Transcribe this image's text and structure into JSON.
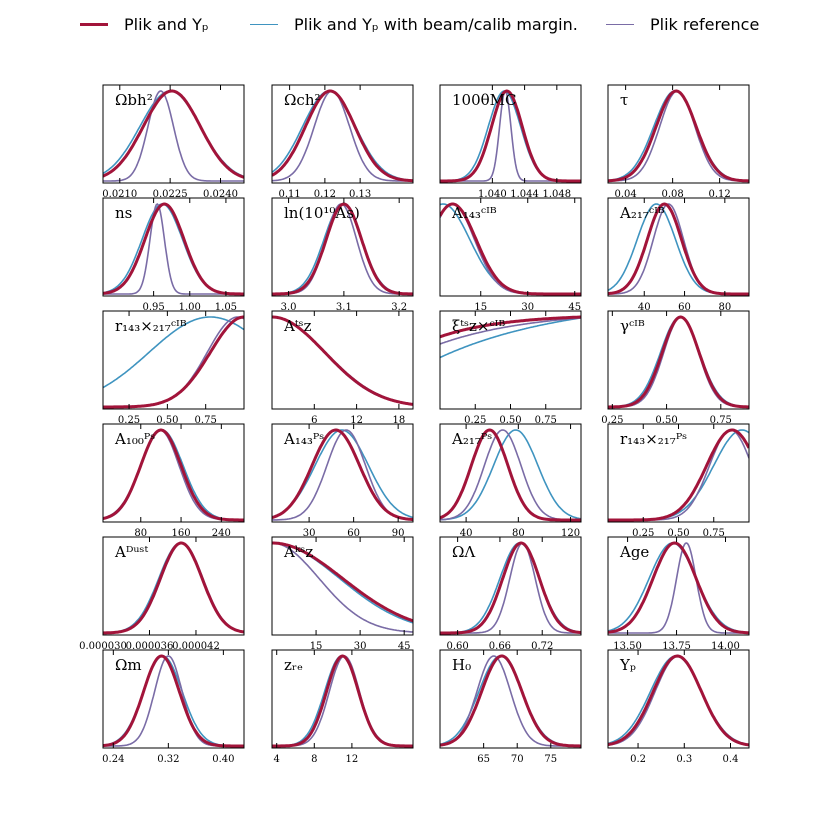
{
  "legend": [
    {
      "label": "Plik and Yₚ",
      "color": "#a2143a",
      "width": 3
    },
    {
      "label": "Plik and Yₚ with beam/calib margin.",
      "color": "#3f94c0",
      "width": 1.6
    },
    {
      "label": "Plik reference",
      "color": "#7a6ca6",
      "width": 1.6
    }
  ],
  "chart_data": {
    "type": "line",
    "panels": [
      {
        "title": "Ωbh²",
        "xlim": [
          0.0205,
          0.0247
        ],
        "xticks": [
          0.021,
          0.0225,
          0.024
        ],
        "ticklabels": [
          "0.0210",
          "0.0225",
          "0.0240"
        ],
        "series": [
          {
            "shape": "gauss",
            "mean": 0.02255,
            "sd": 0.00085
          },
          {
            "shape": "gauss",
            "mean": 0.0225,
            "sd": 0.0009
          },
          {
            "shape": "gauss",
            "mean": 0.02222,
            "sd": 0.00038
          }
        ]
      },
      {
        "title": "Ωch²",
        "xlim": [
          0.105,
          0.145
        ],
        "xticks": [
          0.11,
          0.12,
          0.13
        ],
        "ticklabels": [
          "0.11",
          "0.12",
          "0.13"
        ],
        "series": [
          {
            "shape": "gauss",
            "mean": 0.1215,
            "sd": 0.007
          },
          {
            "shape": "gauss",
            "mean": 0.1212,
            "sd": 0.0075
          },
          {
            "shape": "gauss",
            "mean": 0.122,
            "sd": 0.005
          }
        ]
      },
      {
        "title": "100θMC",
        "xlim": [
          1.0335,
          1.051
        ],
        "xticks": [
          1.04,
          1.044,
          1.048
        ],
        "ticklabels": [
          "1.040",
          "1.044",
          "1.048"
        ],
        "series": [
          {
            "shape": "gauss",
            "mean": 1.0418,
            "sd": 0.0019
          },
          {
            "shape": "gauss",
            "mean": 1.0415,
            "sd": 0.002
          },
          {
            "shape": "gauss",
            "mean": 1.0416,
            "sd": 0.0007
          }
        ]
      },
      {
        "title": "τ",
        "xlim": [
          0.025,
          0.145
        ],
        "xticks": [
          0.04,
          0.08,
          0.12
        ],
        "ticklabels": [
          "0.04",
          "0.08",
          "0.12"
        ],
        "series": [
          {
            "shape": "gauss",
            "mean": 0.083,
            "sd": 0.017
          },
          {
            "shape": "gauss",
            "mean": 0.082,
            "sd": 0.018
          },
          {
            "shape": "gauss",
            "mean": 0.084,
            "sd": 0.015
          }
        ]
      },
      {
        "title": "ns",
        "xlim": [
          0.88,
          1.075
        ],
        "xticks": [
          0.95,
          1.0,
          1.05
        ],
        "ticklabels": [
          "0.95",
          "1.00",
          "1.05"
        ],
        "series": [
          {
            "shape": "gauss",
            "mean": 0.965,
            "sd": 0.027
          },
          {
            "shape": "gauss",
            "mean": 0.962,
            "sd": 0.028
          },
          {
            "shape": "gauss",
            "mean": 0.955,
            "sd": 0.01
          }
        ]
      },
      {
        "title": "ln(10¹⁰As)",
        "xlim": [
          2.97,
          3.225
        ],
        "xticks": [
          3.0,
          3.1,
          3.2
        ],
        "ticklabels": [
          "3.0",
          "3.1",
          "3.2"
        ],
        "series": [
          {
            "shape": "gauss",
            "mean": 3.1,
            "sd": 0.032
          },
          {
            "shape": "gauss",
            "mean": 3.098,
            "sd": 0.034
          },
          {
            "shape": "gauss",
            "mean": 3.095,
            "sd": 0.028
          }
        ]
      },
      {
        "title": "A₁₄₃ᶜᴵᴮ",
        "xlim": [
          2,
          47
        ],
        "xticks": [
          15,
          30,
          45
        ],
        "ticklabels": [
          "15",
          "30",
          "45"
        ],
        "series": [
          {
            "shape": "gauss",
            "mean": 6,
            "sd": 7.5
          },
          {
            "shape": "gauss",
            "mean": 3,
            "sd": 8.5
          },
          {
            "shape": "gauss",
            "mean": 6,
            "sd": 7.0
          }
        ]
      },
      {
        "title": "A₂₁₇ᶜᴵᴮ",
        "xlim": [
          22,
          92
        ],
        "xticks": [
          40,
          60,
          80
        ],
        "ticklabels": [
          "40",
          "60",
          "80"
        ],
        "series": [
          {
            "shape": "gauss",
            "mean": 50,
            "sd": 8.5
          },
          {
            "shape": "gauss",
            "mean": 46,
            "sd": 9.5
          },
          {
            "shape": "gauss",
            "mean": 52,
            "sd": 7.5
          }
        ]
      },
      {
        "title": "r₁₄₃×₂₁₇ᶜᴵᴮ",
        "xlim": [
          0.08,
          1.0
        ],
        "xticks": [
          0.25,
          0.5,
          0.75
        ],
        "ticklabels": [
          "0.25",
          "0.50",
          "0.75"
        ],
        "series": [
          {
            "shape": "gauss",
            "mean": 1.0,
            "sd": 0.22
          },
          {
            "shape": "gauss",
            "mean": 0.78,
            "sd": 0.4
          },
          {
            "shape": "gauss",
            "mean": 0.96,
            "sd": 0.2
          }
        ]
      },
      {
        "title": "Aᵗˢᴢ",
        "xlim": [
          0,
          20
        ],
        "xticks": [
          6,
          12,
          18
        ],
        "ticklabels": [
          "6",
          "12",
          "18"
        ],
        "series": [
          {
            "shape": "gauss",
            "mean": 0,
            "sd": 7.5
          },
          {
            "shape": "gauss",
            "mean": 0,
            "sd": 7.6
          },
          {
            "shape": "gauss",
            "mean": 0,
            "sd": 7.4
          }
        ]
      },
      {
        "title": "ξᵗˢᴢ×ᶜᴵᴮ",
        "xlim": [
          0,
          1
        ],
        "xticks": [
          0.25,
          0.5,
          0.75
        ],
        "ticklabels": [
          "0.25",
          "0.50",
          "0.75"
        ],
        "series": [
          {
            "shape": "ramp",
            "y0": 0.78,
            "y1": 1.0,
            "k": 2.2
          },
          {
            "shape": "ramp",
            "y0": 0.55,
            "y1": 0.99,
            "k": 1.1
          },
          {
            "shape": "ramp",
            "y0": 0.7,
            "y1": 0.99,
            "k": 1.5
          }
        ]
      },
      {
        "title": "γᶜᴵᴮ",
        "xlim": [
          0.23,
          0.88
        ],
        "xticks": [
          0.25,
          0.5,
          0.75
        ],
        "ticklabels": [
          "0.25",
          "0.50",
          "0.75"
        ],
        "series": [
          {
            "shape": "gauss",
            "mean": 0.565,
            "sd": 0.085
          },
          {
            "shape": "gauss",
            "mean": 0.562,
            "sd": 0.09
          },
          {
            "shape": "gauss",
            "mean": 0.567,
            "sd": 0.08
          }
        ]
      },
      {
        "title": "A₁₀₀ᴾˢ",
        "xlim": [
          5,
          285
        ],
        "xticks": [
          80,
          160,
          240
        ],
        "ticklabels": [
          "80",
          "160",
          "240"
        ],
        "series": [
          {
            "shape": "gauss",
            "mean": 120,
            "sd": 40
          },
          {
            "shape": "gauss",
            "mean": 122,
            "sd": 42
          },
          {
            "shape": "gauss",
            "mean": 118,
            "sd": 38
          }
        ]
      },
      {
        "title": "A₁₄₃ᴾˢ",
        "xlim": [
          5,
          100
        ],
        "xticks": [
          30,
          60,
          90
        ],
        "ticklabels": [
          "30",
          "60",
          "90"
        ],
        "series": [
          {
            "shape": "gauss",
            "mean": 48,
            "sd": 16
          },
          {
            "shape": "gauss",
            "mean": 52,
            "sd": 18
          },
          {
            "shape": "gauss",
            "mean": 55,
            "sd": 13
          }
        ]
      },
      {
        "title": "A₂₁₇ᴾˢ",
        "xlim": [
          20,
          128
        ],
        "xticks": [
          40,
          80,
          120
        ],
        "ticklabels": [
          "40",
          "80",
          "120"
        ],
        "series": [
          {
            "shape": "gauss",
            "mean": 58,
            "sd": 14
          },
          {
            "shape": "gauss",
            "mean": 78,
            "sd": 17
          },
          {
            "shape": "gauss",
            "mean": 68,
            "sd": 14
          }
        ]
      },
      {
        "title": "r₁₄₃×₂₁₇ᴾˢ",
        "xlim": [
          0.0,
          1.0
        ],
        "xticks": [
          0.25,
          0.5,
          0.75
        ],
        "ticklabels": [
          "0.25",
          "0.50",
          "0.75"
        ],
        "series": [
          {
            "shape": "gauss",
            "mean": 0.88,
            "sd": 0.18
          },
          {
            "shape": "gauss",
            "mean": 0.95,
            "sd": 0.2
          },
          {
            "shape": "gauss",
            "mean": 0.87,
            "sd": 0.15
          }
        ]
      },
      {
        "title": "Aᴰᵘˢᵗ",
        "xlim": [
          3e-05,
          4.82e-05
        ],
        "xticks": [
          3e-05,
          3.6e-05,
          4.2e-05
        ],
        "ticklabels": [
          "0.000030",
          "0.000036",
          "0.000042"
        ],
        "series": [
          {
            "shape": "gauss",
            "mean": 4.01e-05,
            "sd": 2.7e-06
          },
          {
            "shape": "gauss",
            "mean": 4e-05,
            "sd": 2.8e-06
          },
          {
            "shape": "gauss",
            "mean": 4.02e-05,
            "sd": 2.7e-06
          }
        ]
      },
      {
        "title": "Aᵏˢᴢ",
        "xlim": [
          0,
          48
        ],
        "xticks": [
          15,
          30,
          45
        ],
        "ticklabels": [
          "15",
          "30",
          "45"
        ],
        "series": [
          {
            "shape": "gauss",
            "mean": 0,
            "sd": 24
          },
          {
            "shape": "gauss",
            "mean": 0,
            "sd": 23
          },
          {
            "shape": "gauss",
            "mean": 0,
            "sd": 16
          }
        ]
      },
      {
        "title": "ΩΛ",
        "xlim": [
          0.575,
          0.775
        ],
        "xticks": [
          0.6,
          0.66,
          0.72
        ],
        "ticklabels": [
          "0.60",
          "0.66",
          "0.72"
        ],
        "series": [
          {
            "shape": "gauss",
            "mean": 0.69,
            "sd": 0.026
          },
          {
            "shape": "gauss",
            "mean": 0.688,
            "sd": 0.028
          },
          {
            "shape": "gauss",
            "mean": 0.692,
            "sd": 0.018
          }
        ]
      },
      {
        "title": "Age",
        "xlim": [
          13.4,
          14.12
        ],
        "xticks": [
          13.5,
          13.75,
          14.0
        ],
        "ticklabels": [
          "13.50",
          "13.75",
          "14.00"
        ],
        "series": [
          {
            "shape": "gauss",
            "mean": 13.74,
            "sd": 0.11
          },
          {
            "shape": "gauss",
            "mean": 13.73,
            "sd": 0.12
          },
          {
            "shape": "gauss",
            "mean": 13.8,
            "sd": 0.05
          }
        ]
      },
      {
        "title": "Ωm",
        "xlim": [
          0.225,
          0.43
        ],
        "xticks": [
          0.24,
          0.32,
          0.4
        ],
        "ticklabels": [
          "0.24",
          "0.32",
          "0.40"
        ],
        "series": [
          {
            "shape": "gauss",
            "mean": 0.31,
            "sd": 0.026
          },
          {
            "shape": "gauss",
            "mean": 0.312,
            "sd": 0.028
          },
          {
            "shape": "gauss",
            "mean": 0.32,
            "sd": 0.02
          }
        ]
      },
      {
        "title": "zᵣₑ",
        "xlim": [
          3.5,
          18.5
        ],
        "xticks": [
          4,
          8,
          12
        ],
        "ticklabels": [
          "4",
          "8",
          "12"
        ],
        "series": [
          {
            "shape": "gauss",
            "mean": 11.0,
            "sd": 1.7
          },
          {
            "shape": "gauss",
            "mean": 10.9,
            "sd": 1.8
          },
          {
            "shape": "gauss",
            "mean": 11.2,
            "sd": 1.6
          }
        ]
      },
      {
        "title": "H₀",
        "xlim": [
          58.5,
          79.5
        ],
        "xticks": [
          65,
          70,
          75
        ],
        "ticklabels": [
          "65",
          "70",
          "75"
        ],
        "series": [
          {
            "shape": "gauss",
            "mean": 67.7,
            "sd": 3.0
          },
          {
            "shape": "gauss",
            "mean": 67.5,
            "sd": 3.2
          },
          {
            "shape": "gauss",
            "mean": 66.5,
            "sd": 2.5
          }
        ]
      },
      {
        "title": "Yₚ",
        "xlim": [
          0.135,
          0.44
        ],
        "xticks": [
          0.2,
          0.3,
          0.4
        ],
        "ticklabels": [
          "0.2",
          "0.3",
          "0.4"
        ],
        "series": [
          {
            "shape": "gauss",
            "mean": 0.285,
            "sd": 0.052
          },
          {
            "shape": "gauss",
            "mean": 0.282,
            "sd": 0.055
          },
          {
            "shape": "gauss",
            "mean": 0.287,
            "sd": 0.05
          }
        ]
      }
    ]
  }
}
